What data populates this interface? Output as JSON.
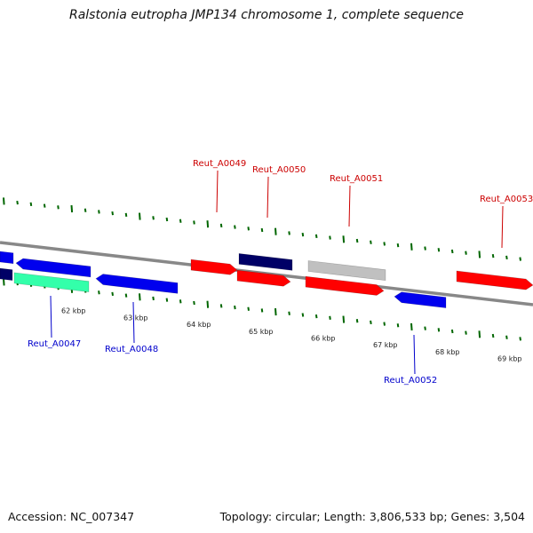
{
  "title": "Ralstonia eutropha JMP134 chromosome 1, complete sequence",
  "footer": {
    "accession": "Accession: NC_007347",
    "summary": "Topology: circular; Length: 3,806,533 bp; Genes: 3,504"
  },
  "colors": {
    "forward_gene": "#ff0000",
    "reverse_gene": "#0000ee",
    "dark_gene": "#000066",
    "rna_gene": "#33ffaa",
    "pseudo_gene": "#c0c0c0",
    "forward_label": "#cc0000",
    "reverse_label": "#0000cc",
    "tick": "#006600",
    "backbone": "#888888"
  },
  "scale": {
    "unit": "kbp",
    "labels": [
      "62 kbp",
      "63 kbp",
      "64 kbp",
      "65 kbp",
      "66 kbp",
      "67 kbp",
      "68 kbp",
      "69 kbp"
    ]
  },
  "labeled_genes": [
    {
      "name": "Reut_A0049",
      "strand": "forward"
    },
    {
      "name": "Reut_A0050",
      "strand": "forward"
    },
    {
      "name": "Reut_A0051",
      "strand": "forward"
    },
    {
      "name": "Reut_A0053",
      "strand": "forward"
    },
    {
      "name": "Reut_A0047",
      "strand": "reverse"
    },
    {
      "name": "Reut_A0048",
      "strand": "reverse"
    },
    {
      "name": "Reut_A0052",
      "strand": "reverse"
    }
  ]
}
